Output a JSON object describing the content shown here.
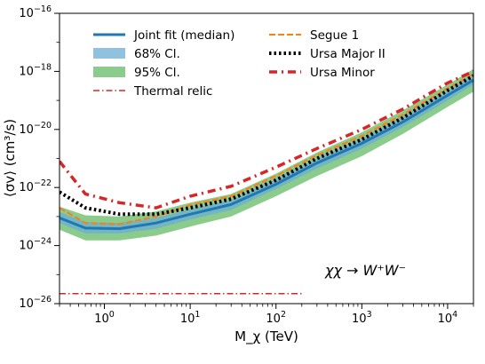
{
  "chart_data": {
    "type": "line",
    "xlabel": "M_χ (TeV)",
    "ylabel": "⟨σv⟩ (cm³/s)",
    "xscale": "log",
    "yscale": "log",
    "xlim": [
      0.3,
      20000
    ],
    "ylim": [
      1e-26,
      1e-16
    ],
    "x_ticks": [
      {
        "value": 1,
        "base": "10",
        "exp": "0"
      },
      {
        "value": 10,
        "base": "10",
        "exp": "1"
      },
      {
        "value": 100,
        "base": "10",
        "exp": "2"
      },
      {
        "value": 1000,
        "base": "10",
        "exp": "3"
      },
      {
        "value": 10000,
        "base": "10",
        "exp": "4"
      }
    ],
    "y_ticks": [
      {
        "value": 1e-26,
        "base": "10",
        "exp": "−26"
      },
      {
        "value": 1e-24,
        "base": "10",
        "exp": "−24"
      },
      {
        "value": 1e-22,
        "base": "10",
        "exp": "−22"
      },
      {
        "value": 1e-20,
        "base": "10",
        "exp": "−20"
      },
      {
        "value": 1e-18,
        "base": "10",
        "exp": "−18"
      },
      {
        "value": 1e-16,
        "base": "10",
        "exp": "−16"
      }
    ],
    "annotation": "χχ → W⁺W⁻",
    "legend_placement": "top",
    "grid": false,
    "series": [
      {
        "name": "Thermal relic",
        "kind": "line",
        "color": "#d62728",
        "style": "dashdot",
        "x": [
          0.3,
          200
        ],
        "y": [
          2.2e-26,
          2.2e-26
        ]
      },
      {
        "name": "95% Cl.",
        "kind": "band",
        "color": "#2ca02c",
        "x": [
          0.3,
          0.6,
          1.5,
          4,
          10,
          30,
          100,
          300,
          1000,
          3000,
          10000,
          20000
        ],
        "lower": [
          3.5e-24,
          1.5e-24,
          1.5e-24,
          2.2e-24,
          4.5e-24,
          1e-23,
          5e-23,
          2.5e-22,
          1.2e-21,
          7e-21,
          6e-20,
          2e-19
        ],
        "upper": [
          2.2e-23,
          1.1e-23,
          1e-23,
          1.5e-23,
          3e-23,
          6e-23,
          3e-22,
          1.6e-21,
          8e-21,
          4.5e-20,
          3.5e-19,
          1.2e-18
        ]
      },
      {
        "name": "68% Cl.",
        "kind": "band",
        "color": "#6baed6",
        "x": [
          0.3,
          0.6,
          1.5,
          4,
          10,
          30,
          100,
          300,
          1000,
          3000,
          10000,
          20000
        ],
        "lower": [
          6e-24,
          2.6e-24,
          2.6e-24,
          3.8e-24,
          8e-24,
          1.7e-23,
          9e-23,
          4.5e-22,
          2.2e-21,
          1.2e-20,
          1e-19,
          3.5e-19
        ],
        "upper": [
          1.4e-23,
          6.5e-24,
          6e-24,
          9e-24,
          1.8e-23,
          3.8e-23,
          2e-22,
          1e-21,
          5e-21,
          2.8e-20,
          2.2e-19,
          8e-19
        ]
      },
      {
        "name": "Joint fit (median)",
        "kind": "line",
        "color": "#1f77b4",
        "style": "solid",
        "x": [
          0.3,
          0.6,
          1.5,
          4,
          10,
          30,
          100,
          300,
          1000,
          3000,
          10000,
          20000
        ],
        "y": [
          9e-24,
          4e-24,
          3.8e-24,
          6e-24,
          1.2e-23,
          2.6e-23,
          1.3e-22,
          7e-22,
          3.3e-21,
          1.8e-20,
          1.5e-19,
          5e-19
        ]
      },
      {
        "name": "Segue 1",
        "kind": "line",
        "color": "#ff7f0e",
        "style": "dashed",
        "x": [
          0.3,
          0.6,
          1.5,
          4,
          10,
          30,
          100,
          300,
          1000,
          3000,
          10000,
          20000
        ],
        "y": [
          2e-23,
          6e-24,
          5.5e-24,
          1e-23,
          2.5e-23,
          5e-23,
          2.5e-22,
          1.3e-21,
          6e-21,
          3.2e-20,
          2.6e-19,
          8e-19
        ]
      },
      {
        "name": "Ursa Major II",
        "kind": "line",
        "color": "#000000",
        "style": "dotted",
        "x": [
          0.3,
          0.6,
          1.5,
          4,
          10,
          30,
          100,
          300,
          1000,
          3000,
          10000,
          20000
        ],
        "y": [
          7e-23,
          2e-23,
          1.2e-23,
          1.2e-23,
          2e-23,
          4e-23,
          1.8e-22,
          1e-21,
          4.5e-21,
          2.5e-20,
          2.2e-19,
          7e-19
        ]
      },
      {
        "name": "Ursa Minor",
        "kind": "line",
        "color": "#d62728",
        "style": "dashdotted",
        "x": [
          0.3,
          0.6,
          1.5,
          4,
          10,
          30,
          100,
          300,
          1000,
          3000,
          10000,
          20000
        ],
        "y": [
          8e-22,
          6e-23,
          3e-23,
          2e-23,
          5e-23,
          1.1e-22,
          5e-22,
          2.2e-21,
          1e-20,
          5e-20,
          4e-19,
          1e-18
        ]
      }
    ],
    "legend_left": [
      "Joint fit (median)",
      "68% Cl.",
      "95% Cl.",
      "Thermal relic"
    ],
    "legend_right": [
      "Segue 1",
      "Ursa Major II",
      "Ursa Minor"
    ]
  }
}
